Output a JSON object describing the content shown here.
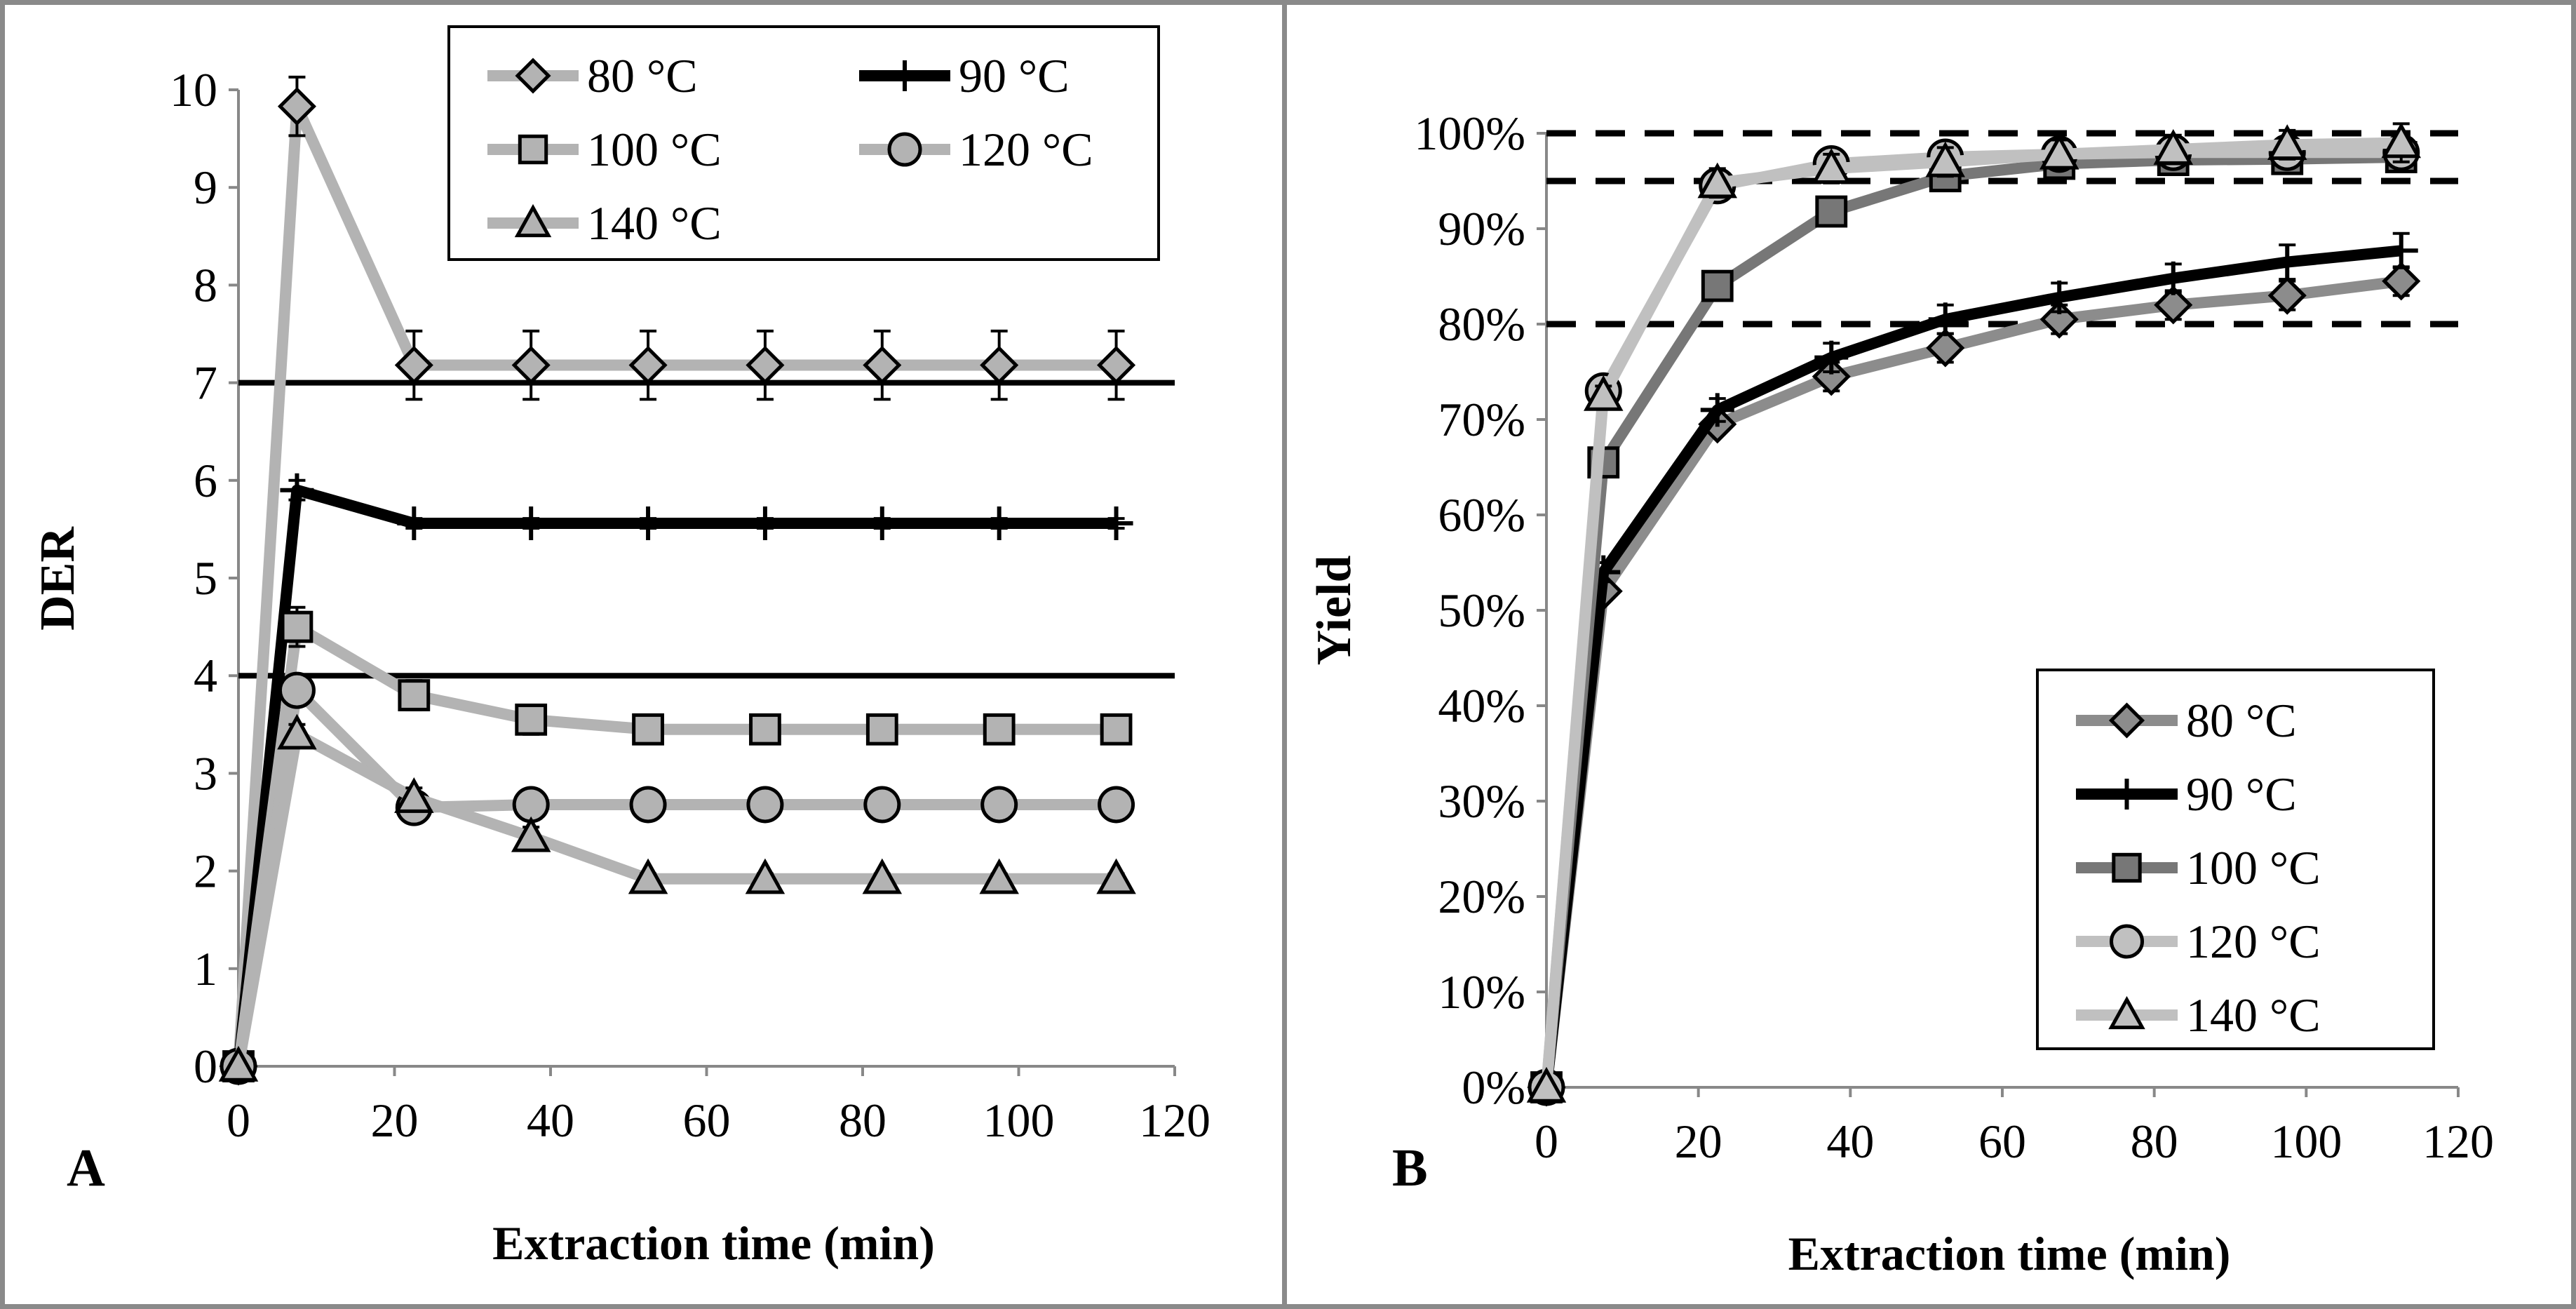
{
  "chart_data": [
    {
      "panel": "A",
      "type": "line",
      "xlabel": "Extraction time (min)",
      "ylabel": "DER",
      "xlim": [
        0,
        120
      ],
      "ylim": [
        0,
        10
      ],
      "xticks": [
        0,
        20,
        40,
        60,
        80,
        100,
        120
      ],
      "yticks": [
        0,
        1,
        2,
        3,
        4,
        5,
        6,
        7,
        8,
        9,
        10
      ],
      "x": [
        0,
        7.5,
        22.5,
        37.5,
        52.5,
        67.5,
        82.5,
        97.5,
        112.5
      ],
      "reference_lines": [
        7,
        4
      ],
      "legend_position": "top-right",
      "series": [
        {
          "name": "80 °C",
          "marker": "diamond",
          "color": "#b3b3b3",
          "values": [
            0,
            9.83,
            7.18,
            7.18,
            7.18,
            7.18,
            7.18,
            7.18,
            7.18
          ],
          "errors": [
            0,
            0.3,
            0.35,
            0.35,
            0.35,
            0.35,
            0.35,
            0.35,
            0.35
          ]
        },
        {
          "name": "90 °C",
          "marker": "plus",
          "color": "#000000",
          "values": [
            0,
            5.9,
            5.56,
            5.56,
            5.56,
            5.56,
            5.56,
            5.56,
            5.56
          ],
          "errors": [
            0,
            0.1,
            0.05,
            0.05,
            0.05,
            0.05,
            0.05,
            0.05,
            0.05
          ]
        },
        {
          "name": "100 °C",
          "marker": "square",
          "color": "#b3b3b3",
          "values": [
            0,
            4.5,
            3.8,
            3.55,
            3.45,
            3.45,
            3.45,
            3.45,
            3.45
          ],
          "errors": [
            0,
            0.2,
            0.15,
            0.15,
            0.1,
            0.1,
            0.1,
            0.1,
            0.1
          ]
        },
        {
          "name": "120 °C",
          "marker": "circle",
          "color": "#b3b3b3",
          "values": [
            0,
            3.85,
            2.65,
            2.68,
            2.68,
            2.68,
            2.68,
            2.68,
            2.68
          ],
          "errors": [
            0,
            0.1,
            0.1,
            0.05,
            0.05,
            0.05,
            0.05,
            0.05,
            0.05
          ]
        },
        {
          "name": "140 °C",
          "marker": "triangle",
          "color": "#b3b3b3",
          "values": [
            0,
            3.4,
            2.75,
            2.35,
            1.92,
            1.92,
            1.92,
            1.92,
            1.92
          ],
          "errors": [
            0,
            0.1,
            0.1,
            0.1,
            0.05,
            0.05,
            0.05,
            0.05,
            0.05
          ]
        }
      ]
    },
    {
      "panel": "B",
      "type": "line",
      "xlabel": "Extraction time (min)",
      "ylabel": "Yield",
      "xlim": [
        0,
        120
      ],
      "ylim": [
        0,
        100
      ],
      "xticks": [
        0,
        20,
        40,
        60,
        80,
        100,
        120
      ],
      "yticks": [
        0,
        10,
        20,
        30,
        40,
        50,
        60,
        70,
        80,
        90,
        100
      ],
      "ytick_suffix": "%",
      "x": [
        0,
        7.5,
        22.5,
        37.5,
        52.5,
        67.5,
        82.5,
        97.5,
        112.5
      ],
      "reference_lines": [
        100,
        95,
        80
      ],
      "legend_position": "bottom-right",
      "series": [
        {
          "name": "80 °C",
          "marker": "diamond",
          "color": "#8c8c8c",
          "values": [
            0,
            52,
            69.5,
            74.5,
            77.5,
            80.5,
            82,
            83,
            84.5
          ],
          "errors": [
            0,
            1,
            1,
            1.5,
            1.5,
            1.5,
            1.5,
            1.5,
            1.5
          ]
        },
        {
          "name": "90 °C",
          "marker": "plus",
          "color": "#000000",
          "values": [
            0,
            54,
            71,
            76.5,
            80.5,
            82.8,
            84.8,
            86.5,
            87.7
          ],
          "errors": [
            0,
            1,
            1.2,
            1.5,
            1.5,
            1.5,
            1.5,
            1.8,
            1.8
          ]
        },
        {
          "name": "100 °C",
          "marker": "square",
          "color": "#777777",
          "values": [
            0,
            65.5,
            84,
            91.8,
            95.5,
            96.8,
            97.2,
            97.3,
            97.5
          ],
          "errors": [
            0,
            1,
            1,
            1,
            1,
            1,
            1,
            1,
            1
          ]
        },
        {
          "name": "120 °C",
          "marker": "circle",
          "color": "#c0c0c0",
          "values": [
            0,
            73,
            94.5,
            96.8,
            97.5,
            97.8,
            98,
            98,
            98
          ],
          "errors": [
            0,
            1,
            1,
            1,
            1,
            1,
            1,
            1,
            1
          ]
        },
        {
          "name": "140 °C",
          "marker": "triangle",
          "color": "#c0c0c0",
          "values": [
            0,
            72.5,
            94.8,
            96.3,
            97,
            97.8,
            98.3,
            98.8,
            99
          ],
          "errors": [
            0,
            1,
            1.5,
            1.5,
            1.5,
            1.5,
            1.5,
            1.5,
            2
          ]
        }
      ]
    }
  ]
}
